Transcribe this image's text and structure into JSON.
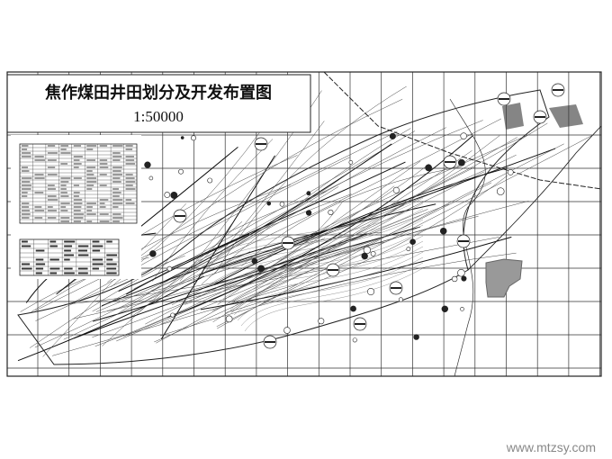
{
  "title": "焦作煤田井田划分及开发布置图",
  "scale": "1:50000",
  "watermark": "www.mtzsy.com"
}
